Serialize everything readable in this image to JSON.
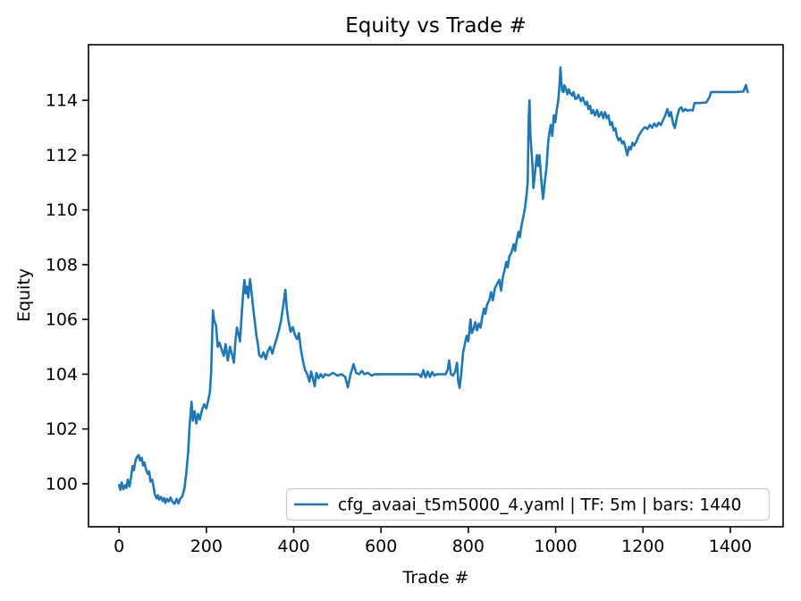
{
  "figure": {
    "background": "#ffffff"
  },
  "colors": {
    "line": "#1f77b4",
    "axis": "#000000",
    "legend_border": "#cccccc",
    "legend_background": "#ffffff"
  },
  "chart_data": {
    "type": "line",
    "title": "Equity vs Trade #",
    "xlabel": "Trade #",
    "ylabel": "Equity",
    "grid": false,
    "legend": {
      "position": "lower right",
      "entries": [
        {
          "label": "cfg_avaai_t5m5000_4.yaml | TF: 5m | bars: 1440",
          "color": "#1f77b4"
        }
      ]
    },
    "xlim": [
      -70,
      1521
    ],
    "ylim": [
      98.43,
      116.03
    ],
    "x_ticks": [
      0,
      200,
      400,
      600,
      800,
      1000,
      1200,
      1400
    ],
    "y_ticks": [
      100,
      102,
      104,
      106,
      108,
      110,
      112,
      114
    ],
    "series": [
      {
        "name": "cfg_avaai_t5m5000_4.yaml | TF: 5m | bars: 1440",
        "color": "#1f77b4",
        "points": [
          [
            0,
            99.95
          ],
          [
            3,
            99.78
          ],
          [
            6,
            100.05
          ],
          [
            10,
            99.8
          ],
          [
            14,
            99.95
          ],
          [
            17,
            99.85
          ],
          [
            20,
            100.15
          ],
          [
            24,
            99.9
          ],
          [
            28,
            100.3
          ],
          [
            31,
            100.65
          ],
          [
            34,
            100.5
          ],
          [
            37,
            100.8
          ],
          [
            40,
            100.95
          ],
          [
            45,
            101.05
          ],
          [
            48,
            100.85
          ],
          [
            52,
            100.95
          ],
          [
            55,
            100.67
          ],
          [
            58,
            100.78
          ],
          [
            62,
            100.5
          ],
          [
            66,
            100.36
          ],
          [
            69,
            100.45
          ],
          [
            72,
            100.08
          ],
          [
            76,
            100.15
          ],
          [
            79,
            99.9
          ],
          [
            82,
            99.6
          ],
          [
            86,
            99.47
          ],
          [
            89,
            99.58
          ],
          [
            92,
            99.42
          ],
          [
            96,
            99.52
          ],
          [
            100,
            99.37
          ],
          [
            103,
            99.48
          ],
          [
            106,
            99.3
          ],
          [
            110,
            99.45
          ],
          [
            114,
            99.35
          ],
          [
            118,
            99.5
          ],
          [
            122,
            99.35
          ],
          [
            127,
            99.27
          ],
          [
            132,
            99.45
          ],
          [
            136,
            99.28
          ],
          [
            140,
            99.45
          ],
          [
            145,
            99.55
          ],
          [
            150,
            99.85
          ],
          [
            154,
            100.4
          ],
          [
            158,
            101.1
          ],
          [
            162,
            102.2
          ],
          [
            166,
            103.0
          ],
          [
            169,
            102.3
          ],
          [
            173,
            102.65
          ],
          [
            177,
            102.2
          ],
          [
            181,
            102.55
          ],
          [
            185,
            102.35
          ],
          [
            190,
            102.7
          ],
          [
            195,
            102.9
          ],
          [
            200,
            102.75
          ],
          [
            205,
            103.1
          ],
          [
            208,
            103.35
          ],
          [
            211,
            104.1
          ],
          [
            215,
            106.33
          ],
          [
            218,
            105.95
          ],
          [
            222,
            105.8
          ],
          [
            226,
            105.0
          ],
          [
            230,
            105.15
          ],
          [
            235,
            104.9
          ],
          [
            240,
            104.67
          ],
          [
            244,
            105.1
          ],
          [
            249,
            104.5
          ],
          [
            254,
            105.0
          ],
          [
            259,
            104.7
          ],
          [
            263,
            104.42
          ],
          [
            267,
            105.3
          ],
          [
            270,
            105.7
          ],
          [
            273,
            105.5
          ],
          [
            277,
            105.2
          ],
          [
            281,
            106.2
          ],
          [
            284,
            106.9
          ],
          [
            287,
            107.44
          ],
          [
            290,
            106.95
          ],
          [
            293,
            107.2
          ],
          [
            296,
            106.8
          ],
          [
            300,
            107.47
          ],
          [
            304,
            106.9
          ],
          [
            308,
            106.3
          ],
          [
            311,
            105.9
          ],
          [
            315,
            105.37
          ],
          [
            318,
            105.1
          ],
          [
            321,
            104.7
          ],
          [
            326,
            104.62
          ],
          [
            331,
            104.8
          ],
          [
            336,
            104.55
          ],
          [
            341,
            104.85
          ],
          [
            346,
            105.0
          ],
          [
            351,
            104.75
          ],
          [
            356,
            105.05
          ],
          [
            361,
            105.3
          ],
          [
            366,
            105.6
          ],
          [
            371,
            105.95
          ],
          [
            376,
            106.5
          ],
          [
            381,
            107.08
          ],
          [
            384,
            106.4
          ],
          [
            388,
            105.95
          ],
          [
            393,
            105.55
          ],
          [
            398,
            105.72
          ],
          [
            403,
            105.42
          ],
          [
            408,
            105.28
          ],
          [
            412,
            105.5
          ],
          [
            416,
            104.95
          ],
          [
            421,
            104.5
          ],
          [
            426,
            104.15
          ],
          [
            431,
            104.0
          ],
          [
            436,
            103.73
          ],
          [
            440,
            104.1
          ],
          [
            444,
            103.85
          ],
          [
            448,
            103.56
          ],
          [
            452,
            104.05
          ],
          [
            457,
            103.85
          ],
          [
            462,
            104.0
          ],
          [
            467,
            103.88
          ],
          [
            472,
            104.0
          ],
          [
            480,
            103.95
          ],
          [
            490,
            104.05
          ],
          [
            500,
            103.95
          ],
          [
            510,
            104.0
          ],
          [
            518,
            103.9
          ],
          [
            524,
            103.52
          ],
          [
            530,
            103.98
          ],
          [
            537,
            104.37
          ],
          [
            543,
            104.05
          ],
          [
            550,
            104.0
          ],
          [
            556,
            104.12
          ],
          [
            562,
            104.0
          ],
          [
            570,
            104.05
          ],
          [
            578,
            103.95
          ],
          [
            586,
            104.0
          ],
          [
            612,
            104.0
          ],
          [
            686,
            104.0
          ],
          [
            692,
            103.9
          ],
          [
            697,
            104.15
          ],
          [
            702,
            103.88
          ],
          [
            707,
            104.1
          ],
          [
            712,
            103.9
          ],
          [
            717,
            104.08
          ],
          [
            722,
            103.95
          ],
          [
            728,
            104.0
          ],
          [
            748,
            104.0
          ],
          [
            753,
            104.18
          ],
          [
            756,
            104.5
          ],
          [
            760,
            104.0
          ],
          [
            765,
            103.95
          ],
          [
            770,
            104.1
          ],
          [
            774,
            104.42
          ],
          [
            777,
            103.72
          ],
          [
            780,
            103.5
          ],
          [
            784,
            104.05
          ],
          [
            788,
            104.8
          ],
          [
            792,
            105.1
          ],
          [
            796,
            105.4
          ],
          [
            800,
            105.2
          ],
          [
            805,
            106.0
          ],
          [
            808,
            105.5
          ],
          [
            812,
            105.65
          ],
          [
            816,
            105.9
          ],
          [
            820,
            105.6
          ],
          [
            824,
            105.85
          ],
          [
            828,
            105.7
          ],
          [
            832,
            106.1
          ],
          [
            836,
            106.4
          ],
          [
            839,
            106.2
          ],
          [
            843,
            106.55
          ],
          [
            848,
            106.7
          ],
          [
            852,
            107.0
          ],
          [
            856,
            106.7
          ],
          [
            861,
            107.15
          ],
          [
            866,
            107.3
          ],
          [
            871,
            107.45
          ],
          [
            875,
            107.05
          ],
          [
            879,
            107.55
          ],
          [
            883,
            107.8
          ],
          [
            887,
            108.1
          ],
          [
            890,
            107.9
          ],
          [
            894,
            108.3
          ],
          [
            899,
            108.45
          ],
          [
            904,
            108.75
          ],
          [
            907,
            108.5
          ],
          [
            911,
            108.9
          ],
          [
            915,
            109.2
          ],
          [
            918,
            109.0
          ],
          [
            922,
            109.45
          ],
          [
            926,
            109.75
          ],
          [
            930,
            110.1
          ],
          [
            933,
            110.5
          ],
          [
            936,
            111.0
          ],
          [
            938,
            113.2
          ],
          [
            940,
            114.0
          ],
          [
            942,
            112.8
          ],
          [
            944,
            112.3
          ],
          [
            947,
            111.6
          ],
          [
            949,
            110.8
          ],
          [
            953,
            111.4
          ],
          [
            957,
            112.0
          ],
          [
            960,
            111.6
          ],
          [
            963,
            112.0
          ],
          [
            967,
            111.1
          ],
          [
            971,
            110.4
          ],
          [
            975,
            111.0
          ],
          [
            979,
            111.55
          ],
          [
            983,
            112.5
          ],
          [
            986,
            112.86
          ],
          [
            989,
            113.1
          ],
          [
            992,
            112.7
          ],
          [
            996,
            113.45
          ],
          [
            999,
            113.2
          ],
          [
            1003,
            113.7
          ],
          [
            1006,
            114.0
          ],
          [
            1009,
            114.6
          ],
          [
            1011,
            115.2
          ],
          [
            1013,
            114.7
          ],
          [
            1015,
            114.35
          ],
          [
            1018,
            114.3
          ],
          [
            1020,
            114.55
          ],
          [
            1023,
            114.45
          ],
          [
            1027,
            114.22
          ],
          [
            1030,
            114.4
          ],
          [
            1034,
            114.25
          ],
          [
            1038,
            114.17
          ],
          [
            1041,
            114.3
          ],
          [
            1045,
            114.05
          ],
          [
            1048,
            114.07
          ],
          [
            1052,
            114.2
          ],
          [
            1058,
            113.97
          ],
          [
            1062,
            114.1
          ],
          [
            1068,
            113.84
          ],
          [
            1072,
            113.95
          ],
          [
            1075,
            113.68
          ],
          [
            1079,
            113.8
          ],
          [
            1082,
            113.52
          ],
          [
            1086,
            113.64
          ],
          [
            1090,
            113.45
          ],
          [
            1095,
            113.64
          ],
          [
            1099,
            113.4
          ],
          [
            1105,
            113.57
          ],
          [
            1109,
            113.35
          ],
          [
            1113,
            113.57
          ],
          [
            1117,
            113.35
          ],
          [
            1121,
            113.45
          ],
          [
            1125,
            113.1
          ],
          [
            1129,
            113.2
          ],
          [
            1133,
            112.9
          ],
          [
            1137,
            112.98
          ],
          [
            1140,
            112.7
          ],
          [
            1144,
            112.54
          ],
          [
            1148,
            112.62
          ],
          [
            1152,
            112.43
          ],
          [
            1156,
            112.5
          ],
          [
            1160,
            112.27
          ],
          [
            1164,
            112.0
          ],
          [
            1168,
            112.3
          ],
          [
            1172,
            112.2
          ],
          [
            1176,
            112.45
          ],
          [
            1180,
            112.35
          ],
          [
            1185,
            112.5
          ],
          [
            1190,
            112.7
          ],
          [
            1196,
            112.86
          ],
          [
            1200,
            112.95
          ],
          [
            1205,
            113.02
          ],
          [
            1210,
            112.95
          ],
          [
            1216,
            113.1
          ],
          [
            1221,
            113.0
          ],
          [
            1226,
            113.15
          ],
          [
            1231,
            113.05
          ],
          [
            1236,
            113.18
          ],
          [
            1241,
            113.1
          ],
          [
            1246,
            113.28
          ],
          [
            1251,
            113.45
          ],
          [
            1256,
            113.68
          ],
          [
            1260,
            113.42
          ],
          [
            1264,
            113.57
          ],
          [
            1269,
            113.15
          ],
          [
            1273,
            112.99
          ],
          [
            1278,
            113.4
          ],
          [
            1283,
            113.68
          ],
          [
            1288,
            113.74
          ],
          [
            1292,
            113.6
          ],
          [
            1297,
            113.68
          ],
          [
            1302,
            113.62
          ],
          [
            1308,
            113.65
          ],
          [
            1314,
            113.63
          ],
          [
            1318,
            113.9
          ],
          [
            1330,
            113.9
          ],
          [
            1345,
            113.92
          ],
          [
            1352,
            114.1
          ],
          [
            1356,
            114.3
          ],
          [
            1380,
            114.3
          ],
          [
            1410,
            114.3
          ],
          [
            1430,
            114.32
          ],
          [
            1436,
            114.56
          ],
          [
            1438,
            114.4
          ],
          [
            1440,
            114.3
          ]
        ]
      }
    ]
  }
}
